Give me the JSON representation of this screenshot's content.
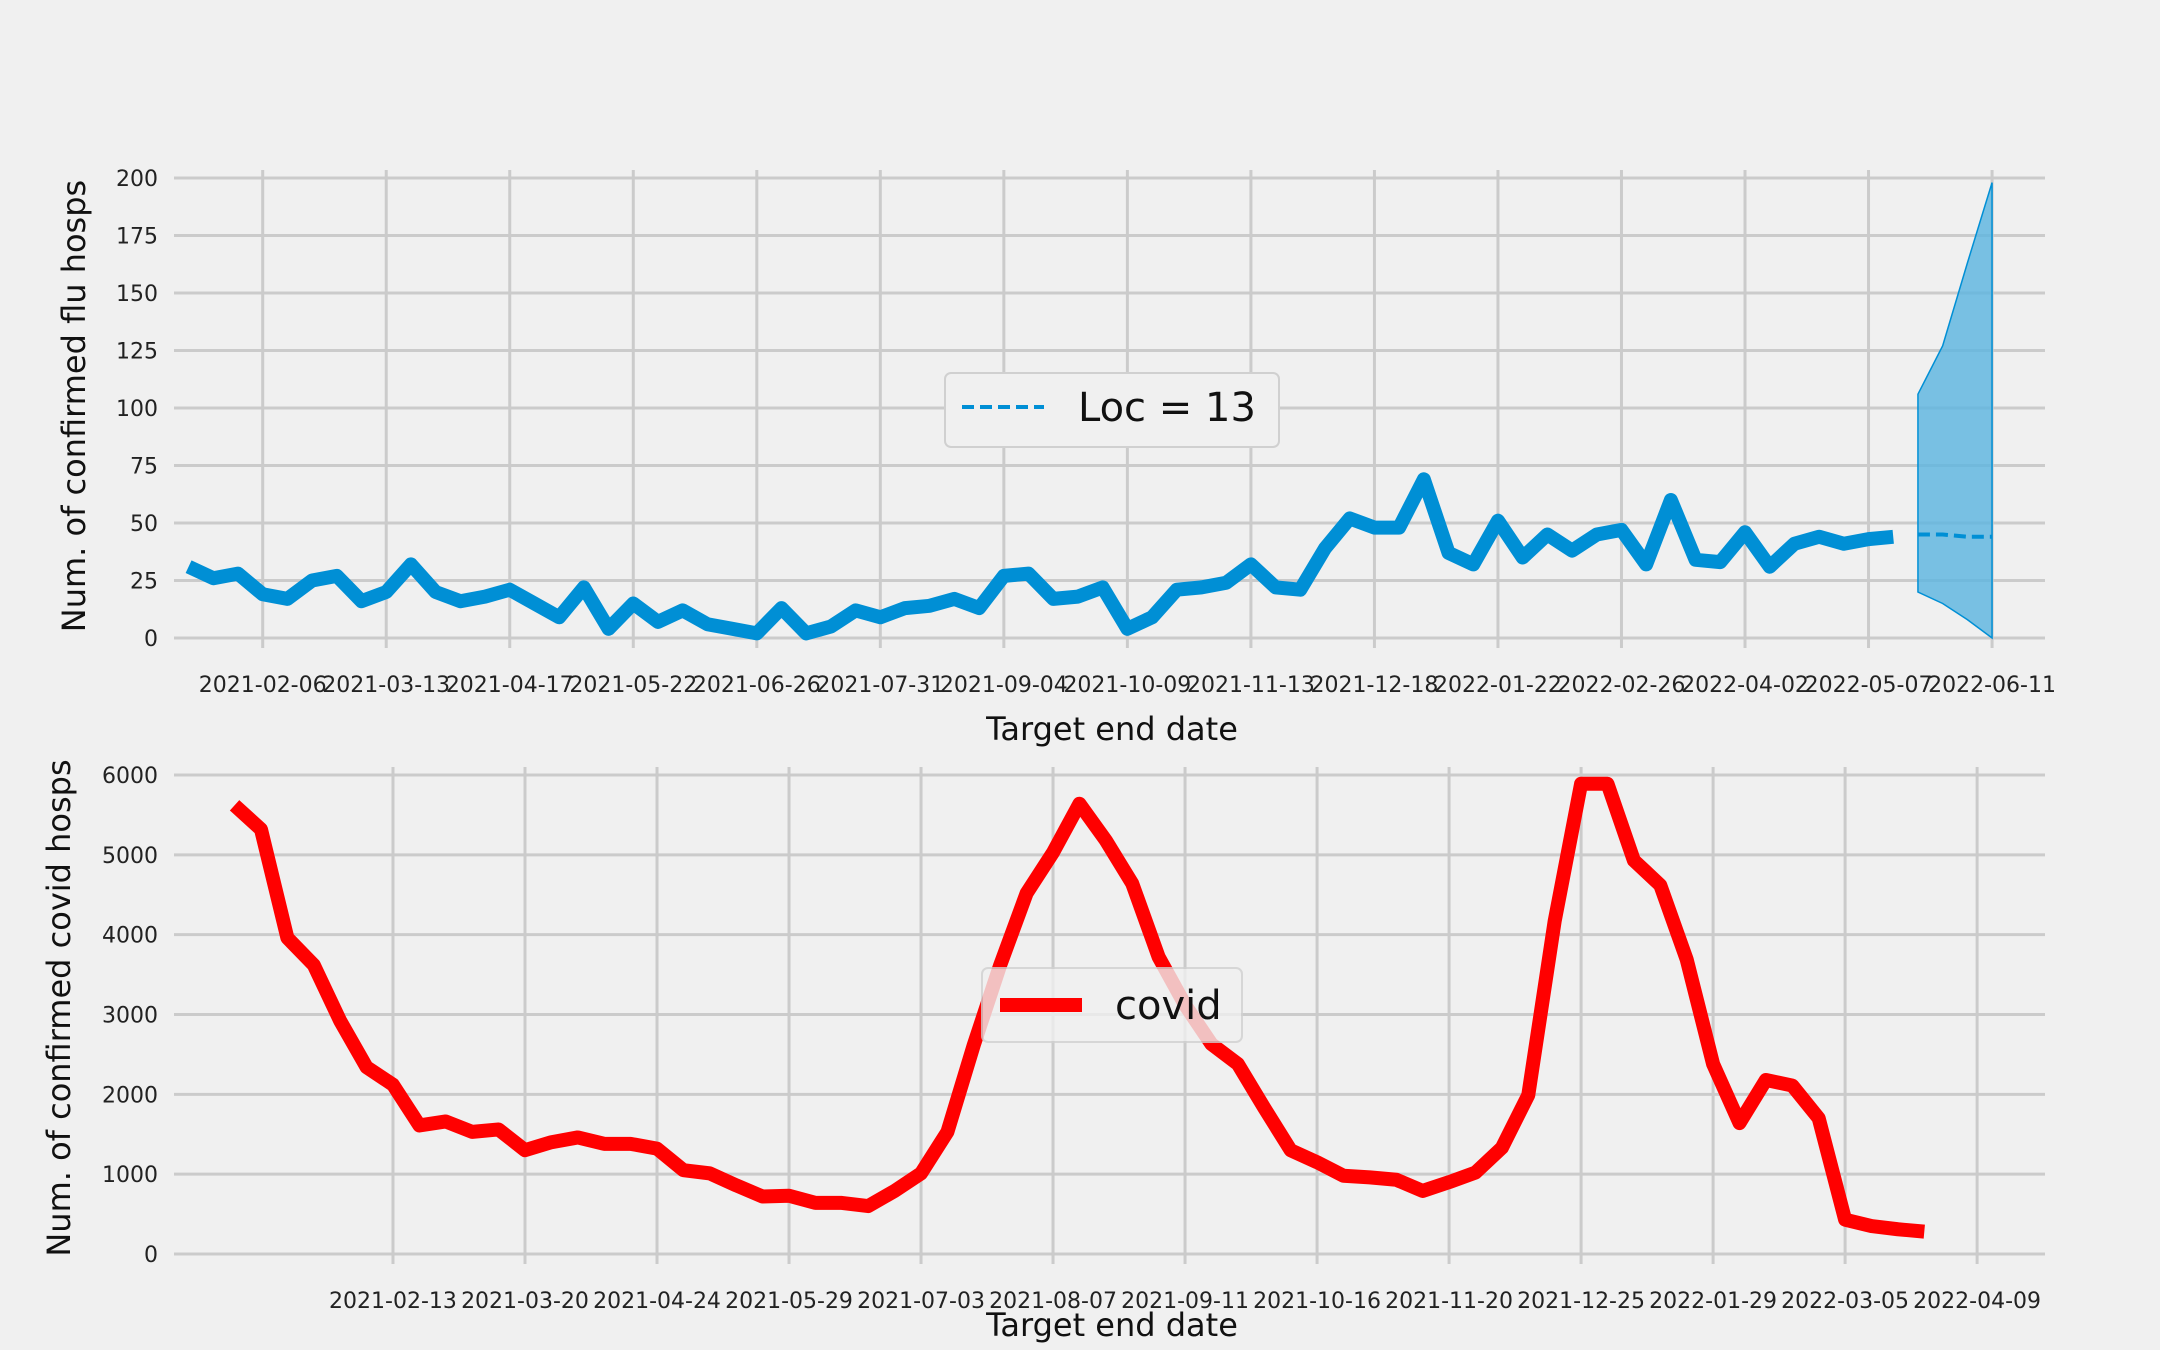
{
  "colors": {
    "background": "#f0f0f0",
    "grid": "#cbcbcb",
    "flu": "#008fd5",
    "flu_band": "#5ab4e0",
    "covid": "#ff0000"
  },
  "chart_data": [
    {
      "type": "line",
      "xlabel": "Target end date",
      "ylabel": "Num. of confirmed flu hosps",
      "ylim": [
        0,
        200
      ],
      "yticks": [
        "0",
        "25",
        "50",
        "75",
        "100",
        "125",
        "150",
        "175",
        "200"
      ],
      "xlim": [
        "2021-01-13",
        "2022-06-26"
      ],
      "xticks": [
        "2021-02-06",
        "2021-03-13",
        "2021-04-17",
        "2021-05-22",
        "2021-06-26",
        "2021-07-31",
        "2021-09-04",
        "2021-10-09",
        "2021-11-13",
        "2021-12-18",
        "2022-01-22",
        "2022-02-26",
        "2022-04-02",
        "2022-05-07",
        "2022-06-11"
      ],
      "grid": true,
      "legend": {
        "placement": "center",
        "entries": [
          {
            "label": "Loc = 13",
            "style": "dashed"
          }
        ]
      },
      "series": [
        {
          "start": "2021-01-16",
          "step_days": 7,
          "values": [
            31,
            26,
            28,
            19,
            17,
            25,
            27,
            16,
            20,
            32,
            20,
            16,
            18,
            21,
            15,
            9,
            22,
            4,
            15,
            7,
            12,
            6,
            4,
            2,
            13,
            2,
            5,
            12,
            9,
            13,
            14,
            17,
            13,
            27,
            28,
            17,
            18,
            22,
            4,
            9,
            21,
            22,
            24,
            32,
            22,
            21,
            39,
            52,
            48,
            48,
            69,
            37,
            32,
            51,
            35,
            45,
            38,
            45,
            47,
            32,
            60,
            34,
            33,
            46,
            31,
            41,
            44,
            41,
            43,
            44
          ]
        },
        {
          "name": "Loc = 13",
          "x": [
            "2022-05-21",
            "2022-05-28",
            "2022-06-04",
            "2022-06-11"
          ],
          "values": [
            45,
            45,
            44,
            44
          ],
          "lower": [
            20,
            15,
            8,
            0
          ],
          "upper": [
            106,
            127,
            163,
            198
          ]
        }
      ]
    },
    {
      "type": "line",
      "xlabel": "Target end date",
      "ylabel": "Num. of confirmed covid hosps",
      "ylim": [
        0,
        6000
      ],
      "yticks": [
        "0",
        "1000",
        "2000",
        "3000",
        "4000",
        "5000",
        "6000"
      ],
      "xlim": [
        "2020-12-18",
        "2022-04-27"
      ],
      "xticks": [
        "2021-02-13",
        "2021-03-20",
        "2021-04-24",
        "2021-05-29",
        "2021-07-03",
        "2021-08-07",
        "2021-09-11",
        "2021-10-16",
        "2021-11-20",
        "2021-12-25",
        "2022-01-29",
        "2022-03-05",
        "2022-04-09"
      ],
      "grid": true,
      "legend": {
        "placement": "center",
        "entries": [
          {
            "label": "covid",
            "style": "solid"
          }
        ]
      },
      "series": [
        {
          "name": "covid",
          "start": "2021-01-02",
          "step_days": 7,
          "values": [
            5620,
            5320,
            3960,
            3620,
            2920,
            2340,
            2120,
            1610,
            1660,
            1530,
            1560,
            1300,
            1400,
            1460,
            1380,
            1380,
            1320,
            1050,
            1010,
            860,
            720,
            730,
            640,
            640,
            600,
            790,
            1010,
            1530,
            2620,
            3620,
            4520,
            5030,
            5640,
            5180,
            4640,
            3720,
            3120,
            2630,
            2380,
            1830,
            1300,
            1150,
            980,
            960,
            930,
            790,
            900,
            1020,
            1330,
            1990,
            4170,
            5890,
            5890,
            4930,
            4620,
            3690,
            2380,
            1640,
            2180,
            2110,
            1700,
            430,
            350,
            310,
            280
          ]
        }
      ]
    }
  ]
}
